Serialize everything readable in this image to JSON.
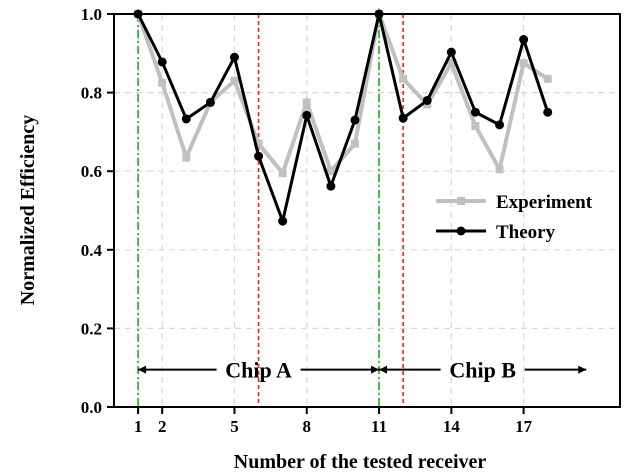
{
  "chart_data": {
    "type": "line",
    "xlabel": "Number of the tested receiver",
    "ylabel": "Normalized Efficiency",
    "xlim": [
      0,
      21
    ],
    "ylim": [
      0,
      1.0
    ],
    "x_ticks": [
      1,
      2,
      5,
      8,
      11,
      14,
      17
    ],
    "y_ticks": [
      0.0,
      0.2,
      0.4,
      0.6,
      0.8,
      1.0
    ],
    "y_tick_labels": [
      "0.0",
      "0.2",
      "0.4",
      "0.6",
      "0.8",
      "1.0"
    ],
    "grid": "on (dashed)",
    "legend_position": "center-right",
    "x": [
      1,
      2,
      3,
      4,
      5,
      6,
      7,
      8,
      9,
      10,
      11,
      12,
      13,
      14,
      15,
      16,
      17,
      18
    ],
    "series": [
      {
        "name": "Experiment",
        "color": "#c0c0c0",
        "marker": "square",
        "values": [
          1.0,
          0.825,
          0.635,
          0.775,
          0.83,
          0.67,
          0.595,
          0.775,
          0.6,
          0.67,
          1.0,
          0.835,
          0.77,
          0.875,
          0.715,
          0.605,
          0.875,
          0.835
        ]
      },
      {
        "name": "Theory",
        "color": "#000000",
        "marker": "circle",
        "values": [
          1.0,
          0.878,
          0.733,
          0.775,
          0.89,
          0.638,
          0.473,
          0.742,
          0.562,
          0.73,
          1.0,
          0.735,
          0.78,
          0.903,
          0.75,
          0.718,
          0.935,
          0.75
        ]
      }
    ],
    "vertical_lines": [
      {
        "x": 1,
        "color": "#22aa22",
        "style": "dash-dot"
      },
      {
        "x": 6,
        "color": "#ee2222",
        "style": "dashed"
      },
      {
        "x": 11,
        "color": "#22aa22",
        "style": "dash-dot"
      },
      {
        "x": 12,
        "color": "#ee2222",
        "style": "dashed"
      }
    ],
    "annotations": [
      {
        "text": "Chip A",
        "from_x": 1,
        "to_x": 11,
        "y": 0.095
      },
      {
        "text": "Chip B",
        "from_x": 11,
        "to_x": 19.6,
        "y": 0.095
      }
    ]
  }
}
